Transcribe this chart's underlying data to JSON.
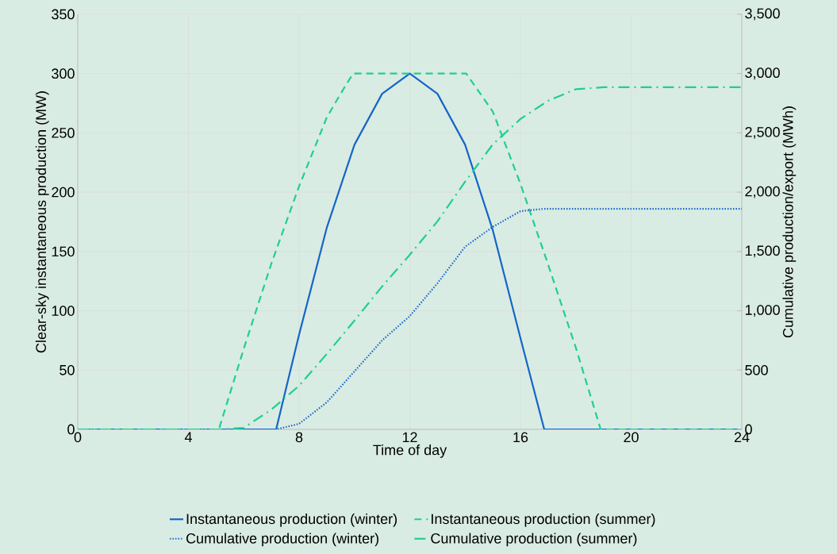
{
  "chart_data": {
    "type": "line",
    "xlabel": "Time of day",
    "ylabel": "Clear-sky instantaneous production (MW)",
    "y2label": "Cumulative production/export (MWh)",
    "xlim": [
      0,
      24
    ],
    "xticks": [
      0,
      4,
      8,
      12,
      16,
      20,
      24
    ],
    "ylim": [
      0,
      350
    ],
    "yticks": [
      0,
      50,
      100,
      150,
      200,
      250,
      300,
      350
    ],
    "y2lim": [
      0,
      3500
    ],
    "y2ticks": [
      0,
      500,
      {
        "value": 1000,
        "label": "1,000"
      },
      {
        "value": 1500,
        "label": "1,500"
      },
      {
        "value": 2000,
        "label": "2,000"
      },
      {
        "value": 2500,
        "label": "2,500"
      },
      {
        "value": 3000,
        "label": "3,000"
      },
      {
        "value": 3500,
        "label": "3,500"
      }
    ],
    "grid": true,
    "legend": "bottom",
    "series": [
      {
        "name": "Instantaneous production (winter)",
        "color": "#1565c8",
        "line_style": "solid",
        "axis": "y",
        "x": [
          0,
          7.17,
          8,
          9,
          10,
          11,
          12,
          13,
          14,
          15,
          16,
          16.86,
          24
        ],
        "values": [
          0,
          0,
          80,
          170,
          240,
          283,
          300,
          283,
          240,
          168,
          77,
          0,
          0
        ]
      },
      {
        "name": "Instantaneous production (summer)",
        "color": "#1fcf92",
        "line_style": "dashed",
        "axis": "y",
        "x": [
          0,
          5.1,
          6,
          7,
          8,
          9,
          9.5,
          9.95,
          14.04,
          15,
          16,
          17,
          18,
          18.9,
          24
        ],
        "values": [
          0,
          0,
          68,
          140,
          205,
          263,
          283,
          300,
          300,
          268,
          207,
          139,
          69,
          0,
          0
        ]
      },
      {
        "name": "Cumulative production (winter)",
        "color": "#1565c8",
        "line_style": "dotted",
        "axis": "y2",
        "x": [
          0,
          7.17,
          8,
          9,
          10,
          11,
          12,
          13,
          14,
          15,
          16,
          16.86,
          24
        ],
        "values": [
          0,
          0,
          47,
          228,
          489,
          750,
          955,
          1232,
          1540,
          1707,
          1840,
          1860,
          1860
        ]
      },
      {
        "name": "Cumulative production (summer)",
        "color": "#1fcf92",
        "line_style": "dashdot",
        "axis": "y2",
        "x": [
          0,
          5.1,
          6,
          7,
          8,
          9,
          10,
          11,
          12,
          13,
          14,
          15,
          16,
          17,
          18,
          19,
          24
        ],
        "values": [
          0,
          0,
          13,
          167,
          368,
          636,
          917,
          1205,
          1472,
          1754,
          2088,
          2403,
          2617,
          2771,
          2868,
          2885,
          2885
        ]
      }
    ]
  }
}
